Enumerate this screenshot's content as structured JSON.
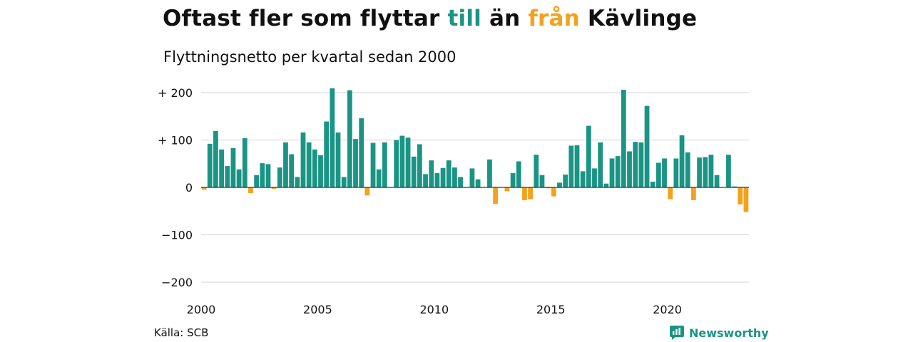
{
  "title": {
    "part1": "Oftast fler som flyttar ",
    "word_till": "till",
    "part2": " än ",
    "word_fran": "från",
    "part3": " Kävlinge"
  },
  "subtitle": "Flyttningsnetto per kvartal sedan 2000",
  "source": "Källa: SCB",
  "brand": "Newsworthy",
  "colors": {
    "positive": "#1a9485",
    "negative": "#f2a21e",
    "grid": "#dddddd",
    "zero_line": "#333333",
    "text": "#111111"
  },
  "chart_data": {
    "type": "bar",
    "series": [
      {
        "values": [
          -5,
          92,
          119,
          80,
          45,
          83,
          38,
          104,
          -12,
          26,
          51,
          49,
          -3,
          42,
          95,
          70,
          22,
          116,
          95,
          80,
          68,
          139,
          209,
          116,
          22,
          205,
          102,
          146,
          -17,
          94,
          38,
          95,
          0,
          100,
          109,
          105,
          65,
          91,
          28,
          57,
          30,
          41,
          57,
          42,
          22,
          0,
          40,
          17,
          0,
          59,
          -35,
          0,
          -8,
          30,
          55,
          -27,
          -25,
          69,
          26,
          -2,
          -19,
          10,
          27,
          88,
          89,
          34,
          130,
          40,
          95,
          8,
          61,
          66,
          206,
          76,
          96,
          95,
          172,
          12,
          52,
          61,
          -25,
          61,
          110,
          74,
          -27,
          63,
          64,
          69,
          26,
          0,
          69,
          2,
          -36,
          -52
        ]
      }
    ],
    "start_year": 2000,
    "start_quarter": 1,
    "x_ticks": [
      "2000",
      "2005",
      "2010",
      "2015",
      "2020"
    ],
    "y_ticks": [
      200,
      100,
      0,
      -100,
      -200
    ],
    "y_tick_labels": [
      "+ 200",
      "+ 100",
      "0",
      "−100",
      "−200"
    ],
    "ylim": [
      -200,
      200
    ],
    "grid": true
  }
}
